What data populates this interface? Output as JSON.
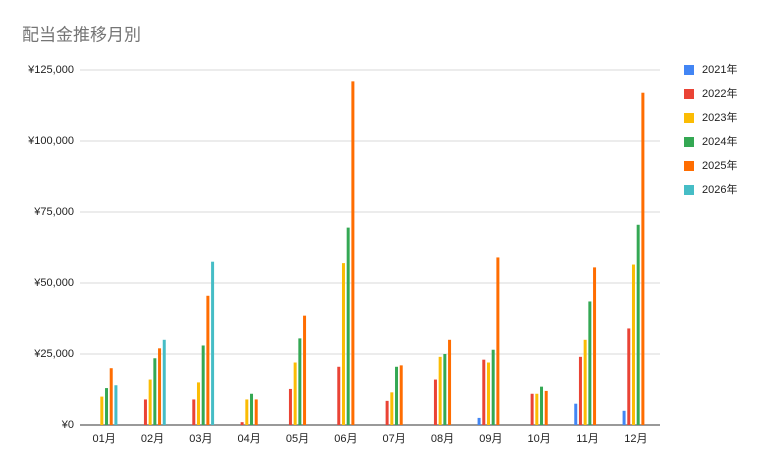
{
  "chart_data": {
    "type": "bar",
    "title": "配当金推移月別",
    "categories": [
      "01月",
      "02月",
      "03月",
      "04月",
      "05月",
      "06月",
      "07月",
      "08月",
      "09月",
      "10月",
      "11月",
      "12月"
    ],
    "series": [
      {
        "name": "2021年",
        "color": "#4285f4",
        "values": [
          null,
          null,
          null,
          null,
          null,
          null,
          null,
          null,
          2500,
          null,
          7500,
          5000
        ]
      },
      {
        "name": "2022年",
        "color": "#ea4335",
        "values": [
          null,
          9000,
          9000,
          1000,
          12700,
          20500,
          8500,
          16000,
          23000,
          11000,
          24000,
          34000
        ]
      },
      {
        "name": "2023年",
        "color": "#fbbc04",
        "values": [
          10000,
          16000,
          15000,
          9000,
          22000,
          57000,
          11500,
          24000,
          22000,
          11000,
          30000,
          56500
        ]
      },
      {
        "name": "2024年",
        "color": "#34a853",
        "values": [
          13000,
          23500,
          28000,
          11000,
          30500,
          69500,
          20500,
          25000,
          26500,
          13500,
          43500,
          70500
        ]
      },
      {
        "name": "2025年",
        "color": "#ff6d01",
        "values": [
          20000,
          27000,
          45500,
          9000,
          38500,
          121000,
          21000,
          30000,
          59000,
          12000,
          55500,
          117000
        ]
      },
      {
        "name": "2026年",
        "color": "#46bdc6",
        "values": [
          14000,
          30000,
          57500,
          null,
          null,
          null,
          null,
          null,
          null,
          null,
          null,
          null
        ]
      }
    ],
    "ylim": [
      0,
      125000
    ],
    "yticks": [
      {
        "value": 0,
        "label": "¥0"
      },
      {
        "value": 25000,
        "label": "¥25,000"
      },
      {
        "value": 50000,
        "label": "¥50,000"
      },
      {
        "value": 75000,
        "label": "¥75,000"
      },
      {
        "value": 100000,
        "label": "¥100,000"
      },
      {
        "value": 125000,
        "label": "¥125,000"
      }
    ],
    "grid": true,
    "legend": "right"
  }
}
